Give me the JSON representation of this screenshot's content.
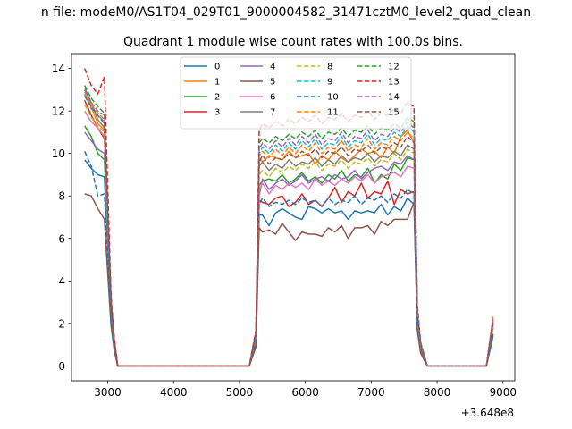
{
  "chart_data": {
    "type": "line",
    "suptitle": "n file: modeM0/AS1T04_029T01_9000004582_31471cztM0_level2_quad_clean",
    "title": "Quadrant 1 module wise count rates with 100.0s bins.",
    "xlabel": "",
    "ylabel": "",
    "x_offset_label": "+3.648e8",
    "xlim": [
      2450,
      9180
    ],
    "ylim": [
      -0.7,
      14.7
    ],
    "xticks": [
      3000,
      4000,
      5000,
      6000,
      7000,
      8000,
      9000
    ],
    "yticks": [
      0,
      2,
      4,
      6,
      8,
      10,
      12,
      14
    ],
    "grid": false,
    "legend_position": "upper-center",
    "legend_columns": 4,
    "x": [
      2650,
      2750,
      2850,
      2950,
      3050,
      3100,
      3150,
      3250,
      5150,
      5250,
      5300,
      5350,
      5450,
      5550,
      5650,
      5750,
      5850,
      5950,
      6050,
      6150,
      6250,
      6350,
      6450,
      6550,
      6650,
      6750,
      6850,
      6950,
      7050,
      7150,
      7250,
      7350,
      7450,
      7550,
      7650,
      7700,
      7750,
      7850,
      8750,
      8850
    ],
    "series": [
      {
        "name": "0",
        "color": "#1f77b4",
        "dash": "solid",
        "values": [
          9.7,
          9.3,
          9.0,
          8.9,
          2.5,
          1.0,
          0,
          0,
          0,
          1.0,
          7.1,
          7.1,
          6.6,
          7.2,
          7.4,
          7.2,
          7.0,
          6.9,
          7.5,
          7.4,
          7.2,
          7.4,
          7.2,
          7.3,
          6.9,
          7.3,
          7.2,
          7.3,
          7.2,
          7.6,
          7.1,
          7.5,
          7.3,
          7.9,
          7.6,
          2.0,
          0.8,
          0,
          0,
          1.5
        ]
      },
      {
        "name": "1",
        "color": "#ff7f0e",
        "dash": "solid",
        "values": [
          13.0,
          12.2,
          11.4,
          11.1,
          3.0,
          1.2,
          0,
          0,
          0,
          1.5,
          9.8,
          9.6,
          9.9,
          9.8,
          9.7,
          10.1,
          9.8,
          9.9,
          10.0,
          9.5,
          9.9,
          9.7,
          10.1,
          9.8,
          9.6,
          9.9,
          10.2,
          10.0,
          10.1,
          9.8,
          10.3,
          10.0,
          10.8,
          11.1,
          10.5,
          2.5,
          1.0,
          0,
          0,
          2.3
        ]
      },
      {
        "name": "2",
        "color": "#2ca02c",
        "dash": "solid",
        "values": [
          11.3,
          10.8,
          10.0,
          9.7,
          2.8,
          1.1,
          0,
          0,
          0,
          1.3,
          8.5,
          8.7,
          8.8,
          8.7,
          9.0,
          8.6,
          8.8,
          9.1,
          8.7,
          8.9,
          8.6,
          9.0,
          8.8,
          9.2,
          8.7,
          9.0,
          8.9,
          9.3,
          8.6,
          9.0,
          8.8,
          9.5,
          9.2,
          9.8,
          9.7,
          2.3,
          0.9,
          0,
          0,
          2.0
        ]
      },
      {
        "name": "3",
        "color": "#d62728",
        "dash": "solid",
        "values": [
          12.5,
          11.8,
          11.2,
          10.7,
          2.9,
          1.1,
          0,
          0,
          0,
          1.2,
          7.8,
          7.7,
          7.6,
          7.9,
          8.0,
          7.5,
          7.7,
          8.1,
          7.6,
          7.8,
          7.5,
          7.9,
          8.4,
          7.7,
          8.2,
          8.0,
          8.6,
          7.9,
          8.2,
          8.1,
          8.7,
          7.6,
          8.3,
          8.1,
          8.2,
          2.1,
          0.8,
          0,
          0,
          1.8
        ]
      },
      {
        "name": "4",
        "color": "#9467bd",
        "dash": "solid",
        "values": [
          11.0,
          10.6,
          10.2,
          10.0,
          2.7,
          1.0,
          0,
          0,
          0,
          1.2,
          8.0,
          8.8,
          8.3,
          8.6,
          8.8,
          8.5,
          8.7,
          9.0,
          8.6,
          8.8,
          8.9,
          8.7,
          9.0,
          8.8,
          8.9,
          9.2,
          8.8,
          9.1,
          9.3,
          9.4,
          9.2,
          9.6,
          9.5,
          9.9,
          9.7,
          2.3,
          0.9,
          0,
          0,
          1.9
        ]
      },
      {
        "name": "5",
        "color": "#8c564b",
        "dash": "solid",
        "values": [
          8.1,
          8.0,
          7.4,
          6.9,
          1.9,
          0.7,
          0,
          0,
          0,
          0.9,
          6.5,
          6.3,
          6.4,
          6.2,
          6.7,
          6.3,
          5.9,
          6.3,
          6.2,
          6.2,
          6.1,
          6.5,
          6.3,
          6.6,
          6.0,
          6.5,
          6.5,
          6.6,
          6.2,
          6.8,
          6.6,
          6.9,
          6.9,
          6.9,
          7.7,
          1.7,
          0.6,
          0,
          0,
          1.4
        ]
      },
      {
        "name": "6",
        "color": "#e377c2",
        "dash": "solid",
        "values": [
          12.0,
          11.5,
          11.2,
          10.8,
          2.9,
          1.1,
          0,
          0,
          0,
          1.3,
          8.3,
          8.6,
          8.1,
          8.5,
          8.3,
          8.6,
          8.4,
          8.6,
          8.3,
          8.8,
          8.5,
          8.7,
          8.5,
          8.8,
          8.6,
          8.9,
          8.7,
          9.0,
          8.6,
          8.9,
          9.0,
          9.1,
          8.9,
          9.4,
          9.3,
          2.2,
          0.9,
          0,
          0,
          1.8
        ]
      },
      {
        "name": "7",
        "color": "#7f7f7f",
        "dash": "solid",
        "values": [
          13.1,
          12.4,
          11.6,
          11.2,
          3.0,
          1.2,
          0,
          0,
          0,
          1.4,
          9.4,
          9.6,
          9.2,
          9.5,
          9.3,
          9.7,
          9.4,
          9.6,
          9.5,
          9.8,
          9.4,
          9.7,
          9.5,
          9.9,
          9.6,
          9.8,
          9.7,
          10.0,
          9.6,
          9.9,
          9.8,
          10.1,
          9.9,
          10.4,
          10.2,
          2.4,
          1.0,
          0,
          0,
          2.0
        ]
      },
      {
        "name": "8",
        "color": "#bcbd22",
        "dash": "dashed",
        "values": [
          12.3,
          11.7,
          11.3,
          11.0,
          2.9,
          1.1,
          0,
          0,
          0,
          1.3,
          9.0,
          9.2,
          8.9,
          9.3,
          9.1,
          9.4,
          9.2,
          9.5,
          9.3,
          9.6,
          9.2,
          9.5,
          9.4,
          9.7,
          9.3,
          9.6,
          9.5,
          9.8,
          9.4,
          9.7,
          9.6,
          10.0,
          9.7,
          10.2,
          10.0,
          2.4,
          0.9,
          0,
          0,
          1.9
        ]
      },
      {
        "name": "9",
        "color": "#17becf",
        "dash": "dashed",
        "values": [
          12.8,
          12.1,
          11.8,
          11.5,
          3.0,
          1.2,
          0,
          0,
          0,
          1.5,
          10.0,
          10.3,
          10.0,
          10.4,
          10.1,
          10.5,
          10.2,
          10.6,
          10.3,
          10.7,
          10.2,
          10.5,
          10.4,
          10.8,
          10.3,
          10.6,
          10.5,
          10.9,
          10.4,
          10.7,
          10.6,
          11.0,
          10.8,
          11.3,
          11.0,
          2.6,
          1.0,
          0,
          0,
          2.1
        ]
      },
      {
        "name": "10",
        "color": "#1f77b4",
        "dash": "dashed",
        "values": [
          10.1,
          9.4,
          8.0,
          8.1,
          2.2,
          0.9,
          0,
          0,
          0,
          1.1,
          7.6,
          7.9,
          7.5,
          7.7,
          7.6,
          7.8,
          7.6,
          7.9,
          7.7,
          7.8,
          7.5,
          7.9,
          7.6,
          7.8,
          7.7,
          8.0,
          7.6,
          7.9,
          7.8,
          8.0,
          7.7,
          8.1,
          7.9,
          8.3,
          8.1,
          1.9,
          0.8,
          0,
          0,
          1.5
        ]
      },
      {
        "name": "11",
        "color": "#ff7f0e",
        "dash": "dashed",
        "values": [
          12.9,
          12.3,
          11.9,
          11.6,
          3.1,
          1.2,
          0,
          0,
          0,
          1.5,
          9.9,
          10.1,
          9.8,
          10.2,
          9.9,
          10.3,
          10.0,
          10.4,
          10.1,
          10.5,
          10.0,
          10.3,
          10.2,
          10.6,
          10.1,
          10.4,
          10.3,
          10.7,
          10.2,
          10.5,
          10.4,
          10.8,
          10.6,
          11.0,
          10.7,
          2.6,
          1.0,
          0,
          0,
          2.1
        ]
      },
      {
        "name": "12",
        "color": "#2ca02c",
        "dash": "dashed",
        "values": [
          13.2,
          12.6,
          12.2,
          11.9,
          3.1,
          1.2,
          0,
          0,
          0,
          1.6,
          10.5,
          10.7,
          10.5,
          10.8,
          10.6,
          10.9,
          10.7,
          11.0,
          10.8,
          11.1,
          10.7,
          11.0,
          10.9,
          11.2,
          10.8,
          11.1,
          11.0,
          11.3,
          10.9,
          11.2,
          11.1,
          11.4,
          11.2,
          11.7,
          11.5,
          2.7,
          1.1,
          0,
          0,
          2.2
        ]
      },
      {
        "name": "13",
        "color": "#d62728",
        "dash": "dashed",
        "values": [
          14.0,
          13.2,
          12.8,
          13.6,
          3.3,
          1.3,
          0,
          0,
          0,
          1.7,
          11.1,
          11.4,
          11.2,
          11.5,
          11.3,
          11.6,
          11.4,
          11.7,
          11.5,
          11.8,
          11.4,
          11.7,
          11.6,
          11.9,
          11.5,
          11.8,
          11.7,
          12.0,
          11.6,
          11.9,
          11.8,
          12.1,
          11.9,
          12.4,
          12.2,
          2.9,
          1.1,
          0,
          0,
          2.3
        ]
      },
      {
        "name": "14",
        "color": "#9467bd",
        "dash": "dashed",
        "values": [
          13.0,
          12.4,
          12.0,
          11.8,
          3.1,
          1.2,
          0,
          0,
          0,
          1.6,
          10.2,
          10.5,
          10.2,
          10.6,
          10.3,
          10.7,
          10.4,
          10.8,
          10.5,
          10.9,
          10.4,
          10.7,
          10.6,
          11.0,
          10.5,
          10.8,
          10.7,
          11.1,
          10.6,
          10.9,
          10.8,
          11.2,
          11.0,
          11.5,
          11.2,
          2.7,
          1.0,
          0,
          0,
          2.2
        ]
      },
      {
        "name": "15",
        "color": "#8c564b",
        "dash": "dashed",
        "values": [
          12.7,
          12.2,
          11.8,
          11.4,
          3.0,
          1.2,
          0,
          0,
          0,
          1.5,
          9.6,
          9.9,
          9.5,
          9.8,
          9.7,
          10.0,
          9.8,
          10.1,
          9.9,
          10.2,
          9.8,
          10.1,
          10.0,
          10.3,
          9.9,
          10.2,
          10.1,
          10.4,
          10.0,
          10.3,
          10.2,
          10.5,
          10.3,
          10.8,
          10.5,
          2.5,
          1.0,
          0,
          0,
          2.0
        ]
      }
    ]
  }
}
